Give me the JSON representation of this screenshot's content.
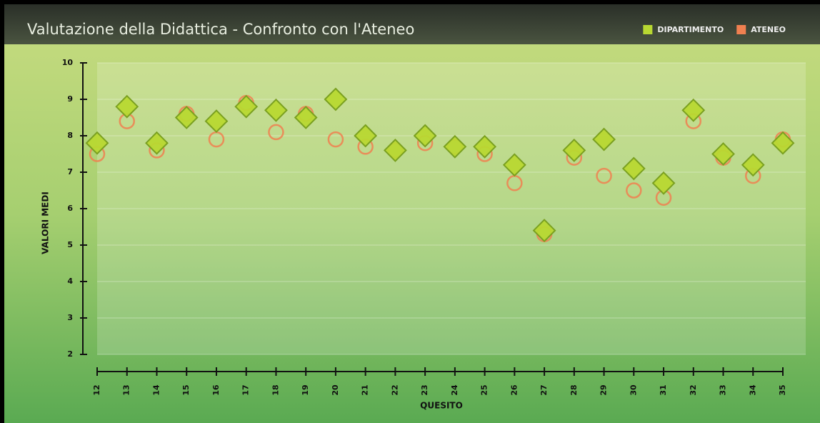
{
  "chart_data": {
    "type": "scatter",
    "title": "Valutazione della Didattica - Confronto con l'Ateneo",
    "xlabel": "QUESITO",
    "ylabel": "VALORI MEDI",
    "categories": [
      "12",
      "13",
      "14",
      "15",
      "16",
      "17",
      "18",
      "19",
      "20",
      "21",
      "22",
      "23",
      "24",
      "25",
      "26",
      "27",
      "28",
      "29",
      "30",
      "31",
      "32",
      "33",
      "34",
      "35"
    ],
    "series": [
      {
        "name": "DIPARTIMENTO",
        "color": "#b8d832",
        "marker": "diamond",
        "values": [
          7.8,
          8.8,
          7.8,
          8.5,
          8.4,
          8.8,
          8.7,
          8.5,
          9.0,
          8.0,
          7.6,
          8.0,
          7.7,
          7.7,
          7.2,
          5.4,
          7.6,
          7.9,
          7.1,
          6.7,
          8.7,
          7.5,
          7.2,
          7.8
        ]
      },
      {
        "name": "ATENEO",
        "color": "#f08050",
        "marker": "circle",
        "values": [
          7.5,
          8.4,
          7.6,
          8.6,
          7.9,
          8.9,
          8.1,
          8.6,
          7.9,
          7.7,
          7.6,
          7.8,
          7.7,
          7.5,
          6.7,
          5.3,
          7.4,
          6.9,
          6.5,
          6.3,
          8.4,
          7.4,
          6.9,
          7.9
        ]
      }
    ],
    "ylim": [
      2,
      10
    ],
    "yticks": [
      2,
      3,
      4,
      5,
      6,
      7,
      8,
      9,
      10
    ],
    "grid": true,
    "legend": "top-right"
  }
}
